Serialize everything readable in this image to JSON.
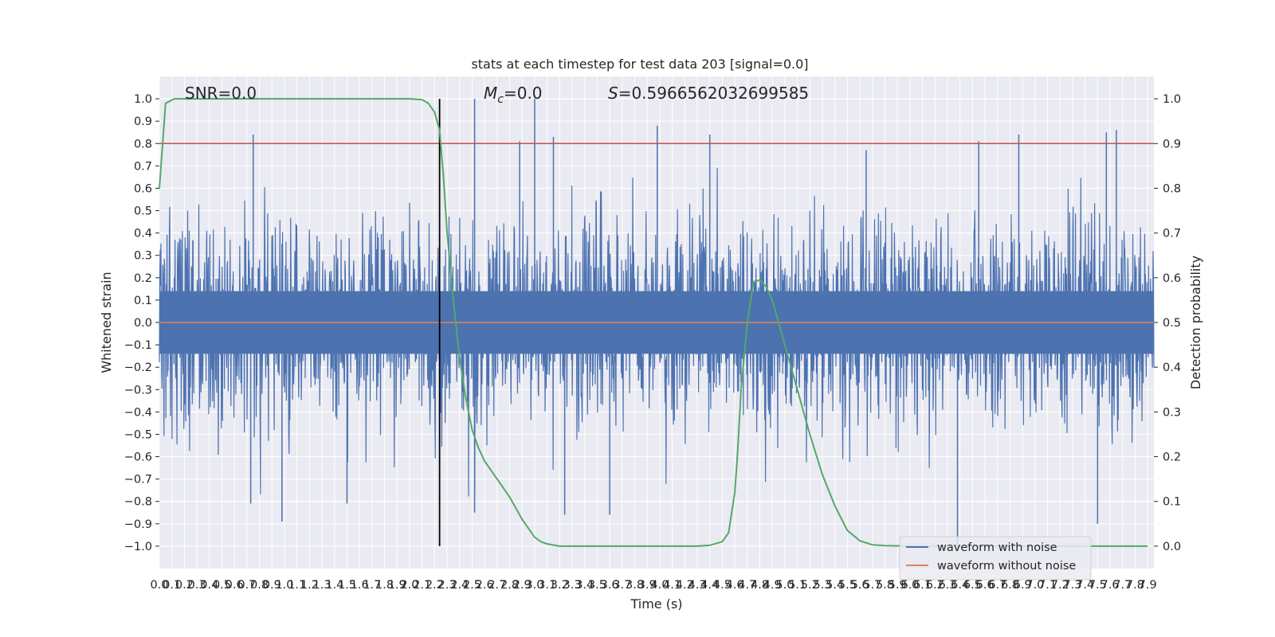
{
  "chart_data": {
    "type": "line",
    "title": "stats at each timestep for test data 203 [signal=0.0]",
    "xlabel": "Time (s)",
    "ylabel": "Whitened strain",
    "y2label": "Detection probability",
    "xlim": [
      0.0,
      7.95
    ],
    "ylim": [
      -1.1,
      1.1
    ],
    "y2lim": [
      -0.05,
      1.05
    ],
    "x_ticks": [
      "0.0",
      "0.1",
      "0.2",
      "0.3",
      "0.4",
      "0.5",
      "0.6",
      "0.7",
      "0.8",
      "0.9",
      "1.0",
      "1.1",
      "1.2",
      "1.3",
      "1.4",
      "1.5",
      "1.6",
      "1.7",
      "1.8",
      "1.9",
      "2.0",
      "2.1",
      "2.2",
      "2.3",
      "2.4",
      "2.5",
      "2.6",
      "2.7",
      "2.8",
      "2.9",
      "3.0",
      "3.1",
      "3.2",
      "3.3",
      "3.4",
      "3.5",
      "3.6",
      "3.7",
      "3.8",
      "3.9",
      "4.0",
      "4.1",
      "4.2",
      "4.3",
      "4.4",
      "4.5",
      "4.6",
      "4.7",
      "4.8",
      "4.9",
      "5.0",
      "5.1",
      "5.2",
      "5.3",
      "5.4",
      "5.5",
      "5.6",
      "5.7",
      "5.8",
      "5.9",
      "6.0",
      "6.1",
      "6.2",
      "6.3",
      "6.4",
      "6.5",
      "6.6",
      "6.7",
      "6.8",
      "6.9",
      "7.0",
      "7.1",
      "7.2",
      "7.3",
      "7.4",
      "7.5",
      "7.6",
      "7.7",
      "7.8",
      "7.9"
    ],
    "y_ticks": [
      "−1.0",
      "−0.9",
      "−0.8",
      "−0.7",
      "−0.6",
      "−0.5",
      "−0.4",
      "−0.3",
      "−0.2",
      "−0.1",
      "0.0",
      "0.1",
      "0.2",
      "0.3",
      "0.4",
      "0.5",
      "0.6",
      "0.7",
      "0.8",
      "0.9",
      "1.0"
    ],
    "y2_ticks": [
      "0.0",
      "0.1",
      "0.2",
      "0.3",
      "0.4",
      "0.5",
      "0.6",
      "0.7",
      "0.8",
      "0.9",
      "1.0"
    ],
    "annotations": {
      "snr": "SNR=0.0",
      "mc_symbol": "M",
      "mc_sub": "c",
      "mc_value": "=0.0",
      "s_symbol": "S",
      "s_value": "=0.5966562032699585"
    },
    "threshold": 0.8,
    "vline_x": 2.24,
    "legend_position": "lower right",
    "series": [
      {
        "name": "waveform with noise",
        "color": "#4c72b0",
        "noise_description": "dense whitened noise, envelope mostly within ±0.5, peaks up to about ±1.0",
        "peaks": [
          {
            "x": 0.75,
            "y": 0.84
          },
          {
            "x": 2.52,
            "y": 1.0
          },
          {
            "x": 2.88,
            "y": 0.81
          },
          {
            "x": 3.0,
            "y": 1.0
          },
          {
            "x": 3.15,
            "y": 0.83
          },
          {
            "x": 3.98,
            "y": 0.88
          },
          {
            "x": 4.4,
            "y": 0.84
          },
          {
            "x": 5.65,
            "y": 0.77
          },
          {
            "x": 6.55,
            "y": 0.81
          },
          {
            "x": 6.87,
            "y": 0.84
          },
          {
            "x": 7.65,
            "y": 0.86
          },
          {
            "x": 7.57,
            "y": 0.85
          },
          {
            "x": 0.98,
            "y": -0.89
          },
          {
            "x": 1.5,
            "y": -0.81
          },
          {
            "x": 2.52,
            "y": -0.85
          },
          {
            "x": 3.24,
            "y": -0.86
          },
          {
            "x": 3.6,
            "y": -0.86
          },
          {
            "x": 6.38,
            "y": -1.01
          },
          {
            "x": 7.5,
            "y": -0.9
          },
          {
            "x": 0.73,
            "y": -0.81
          }
        ]
      },
      {
        "name": "waveform without noise",
        "color": "#dd8452",
        "y_constant": 0.0
      },
      {
        "name": "detection probability",
        "color": "#55a868",
        "axis": "right",
        "x": [
          0.0,
          0.05,
          0.12,
          0.2,
          0.5,
          1.0,
          1.5,
          2.0,
          2.1,
          2.15,
          2.2,
          2.24,
          2.27,
          2.3,
          2.35,
          2.4,
          2.45,
          2.5,
          2.55,
          2.6,
          2.7,
          2.8,
          2.9,
          3.0,
          3.05,
          3.1,
          3.2,
          3.5,
          4.0,
          4.3,
          4.4,
          4.5,
          4.55,
          4.6,
          4.62,
          4.65,
          4.7,
          4.75,
          4.8,
          4.85,
          4.9,
          5.0,
          5.1,
          5.2,
          5.3,
          5.4,
          5.5,
          5.6,
          5.7,
          5.8,
          6.0,
          7.0,
          7.9
        ],
        "y": [
          0.8,
          0.99,
          1.0,
          1.0,
          1.0,
          1.0,
          1.0,
          1.0,
          0.998,
          0.99,
          0.97,
          0.93,
          0.83,
          0.7,
          0.55,
          0.42,
          0.33,
          0.26,
          0.22,
          0.19,
          0.15,
          0.11,
          0.06,
          0.02,
          0.01,
          0.005,
          0.0,
          0.0,
          0.0,
          0.0,
          0.002,
          0.01,
          0.03,
          0.12,
          0.2,
          0.35,
          0.5,
          0.59,
          0.595,
          0.58,
          0.55,
          0.45,
          0.35,
          0.25,
          0.16,
          0.09,
          0.035,
          0.012,
          0.003,
          0.001,
          0.0,
          0.0,
          0.0
        ]
      }
    ]
  }
}
